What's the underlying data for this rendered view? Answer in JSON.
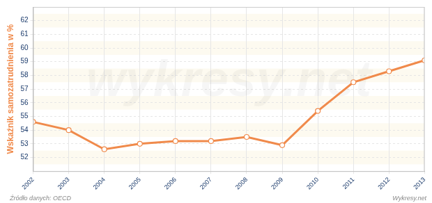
{
  "chart_data": {
    "type": "line",
    "y_label": "Wskaźnik samozatrudnienia w %",
    "categories": [
      "2002",
      "2003",
      "2004",
      "2005",
      "2006",
      "2007",
      "2008",
      "2009",
      "2010",
      "2011",
      "2012",
      "2013"
    ],
    "values": [
      54.6,
      54.0,
      52.6,
      53.0,
      53.2,
      53.2,
      53.5,
      52.9,
      55.4,
      57.5,
      58.3,
      59.1
    ],
    "color": "#f08a4b",
    "marker": "circle",
    "ylim": [
      51,
      63
    ],
    "yticks": [
      52,
      53,
      54,
      55,
      56,
      57,
      58,
      59,
      60,
      61,
      62
    ],
    "grid": true,
    "source": "Źródło danych: OECD",
    "credit": "Wykresy.net",
    "watermark": "wykresy.net"
  }
}
